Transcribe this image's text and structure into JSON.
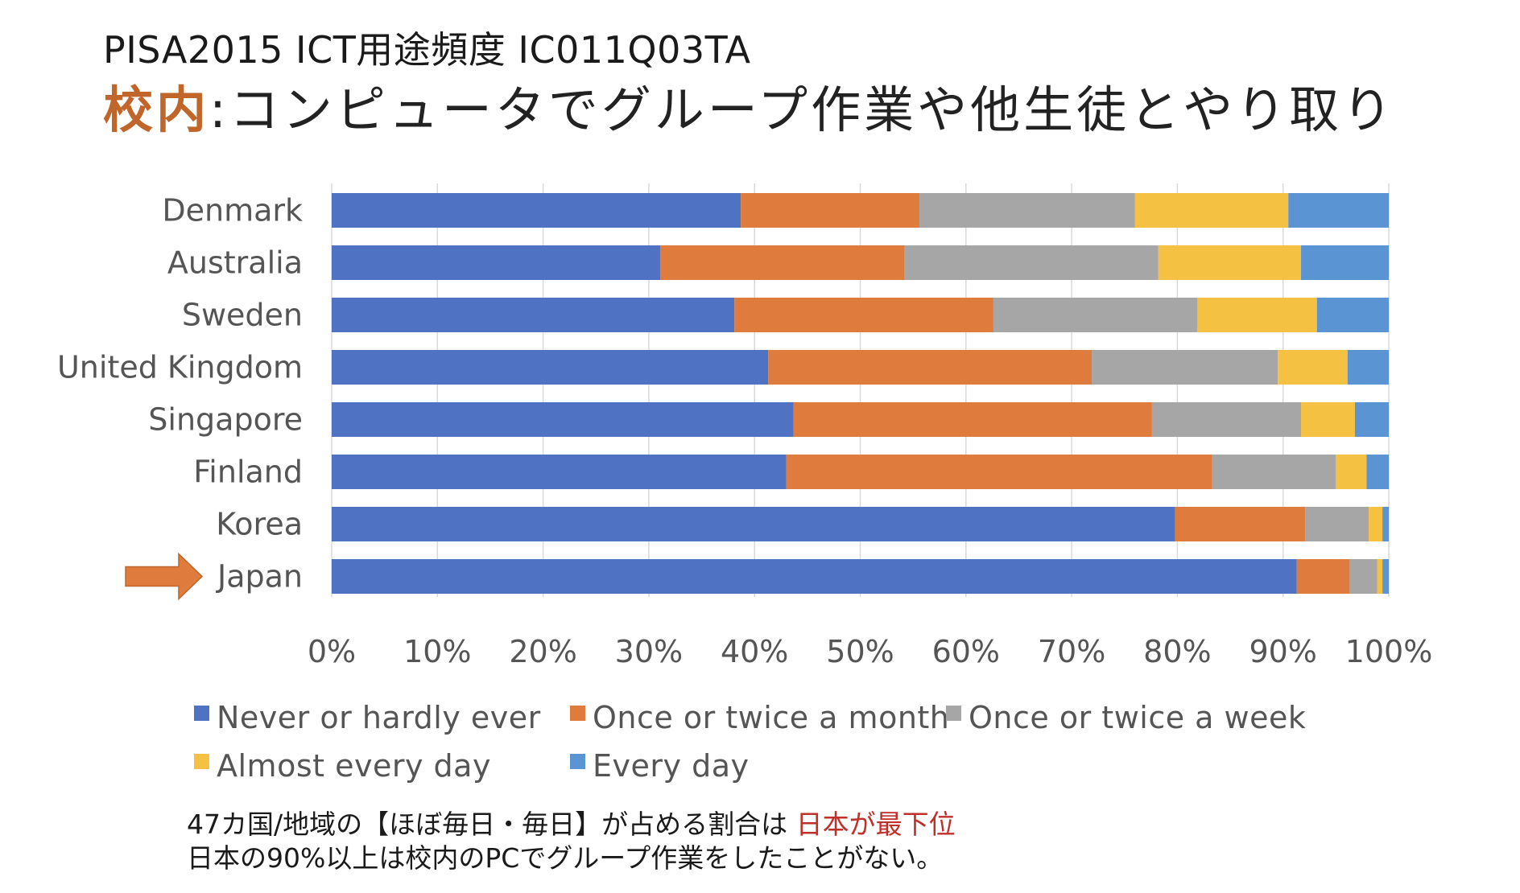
{
  "title": {
    "line1": "PISA2015 ICT用途頻度 IC011Q03TA",
    "line2_highlight": "校内",
    "line2_rest": ":コンピュータでグループ作業や他生徒とやり取り"
  },
  "notes": {
    "line1_prefix": "47カ国/地域の【ほぼ毎日・毎日】が占める割合は ",
    "line1_highlight": "日本が最下位",
    "line2": "日本の90%以上は校内のPCでグループ作業をしたことがない。"
  },
  "colors": {
    "never": "#4f72c2",
    "month": "#e07b3e",
    "week": "#a6a6a6",
    "almost_daily": "#f4c142",
    "daily": "#5b94d3",
    "arrow": "#e07b3e",
    "title_accent": "#c0662b",
    "note_accent": "#c0302b"
  },
  "highlighted_category": "Japan",
  "chart_data": {
    "type": "bar",
    "orientation": "horizontal",
    "stacked": true,
    "normalized_percent": true,
    "categories": [
      "Denmark",
      "Australia",
      "Sweden",
      "United Kingdom",
      "Singapore",
      "Finland",
      "Korea",
      "Japan"
    ],
    "series": [
      {
        "name": "Never or hardly ever",
        "color_key": "never",
        "values": [
          38.7,
          31.1,
          38.1,
          41.3,
          43.7,
          43.0,
          79.8,
          91.3
        ]
      },
      {
        "name": "Once or twice a month",
        "color_key": "month",
        "values": [
          16.9,
          23.1,
          24.5,
          30.6,
          33.9,
          40.3,
          12.3,
          5.0
        ]
      },
      {
        "name": "Once or twice a week",
        "color_key": "week",
        "values": [
          20.4,
          24.0,
          19.3,
          17.6,
          14.1,
          11.7,
          6.0,
          2.6
        ]
      },
      {
        "name": "Almost every day",
        "color_key": "almost_daily",
        "values": [
          14.5,
          13.5,
          11.3,
          6.6,
          5.1,
          2.9,
          1.3,
          0.5
        ]
      },
      {
        "name": "Every day",
        "color_key": "daily",
        "values": [
          9.5,
          8.3,
          6.8,
          3.9,
          3.2,
          2.1,
          0.6,
          0.6
        ]
      }
    ],
    "x_ticks": [
      "0%",
      "10%",
      "20%",
      "30%",
      "40%",
      "50%",
      "60%",
      "70%",
      "80%",
      "90%",
      "100%"
    ],
    "xlim": [
      0,
      100
    ],
    "grid": "vertical",
    "legend_position": "bottom"
  }
}
